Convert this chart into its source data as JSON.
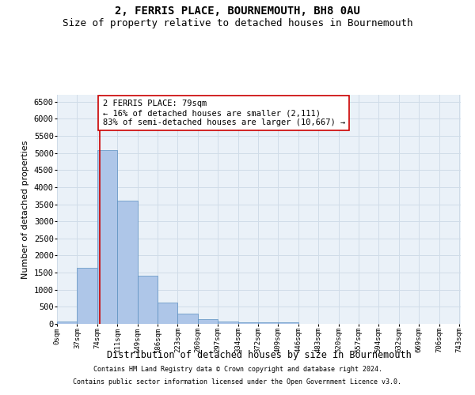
{
  "title": "2, FERRIS PLACE, BOURNEMOUTH, BH8 0AU",
  "subtitle": "Size of property relative to detached houses in Bournemouth",
  "xlabel": "Distribution of detached houses by size in Bournemouth",
  "ylabel": "Number of detached properties",
  "footer_line1": "Contains HM Land Registry data © Crown copyright and database right 2024.",
  "footer_line2": "Contains public sector information licensed under the Open Government Licence v3.0.",
  "bin_labels": [
    "0sqm",
    "37sqm",
    "74sqm",
    "111sqm",
    "149sqm",
    "186sqm",
    "223sqm",
    "260sqm",
    "297sqm",
    "334sqm",
    "372sqm",
    "409sqm",
    "446sqm",
    "483sqm",
    "520sqm",
    "557sqm",
    "594sqm",
    "632sqm",
    "669sqm",
    "706sqm",
    "743sqm"
  ],
  "bar_values": [
    75,
    1630,
    5080,
    3600,
    1400,
    620,
    300,
    140,
    80,
    50,
    40,
    50,
    0,
    0,
    0,
    0,
    0,
    0,
    0,
    0
  ],
  "bar_color": "#aec6e8",
  "bar_edge_color": "#5a8fc0",
  "grid_color": "#d0dce8",
  "property_line_x": 79,
  "property_line_color": "#cc0000",
  "annotation_text": "2 FERRIS PLACE: 79sqm\n← 16% of detached houses are smaller (2,111)\n83% of semi-detached houses are larger (10,667) →",
  "annotation_box_color": "#ffffff",
  "annotation_box_edge_color": "#cc0000",
  "ylim": [
    0,
    6700
  ],
  "yticks": [
    0,
    500,
    1000,
    1500,
    2000,
    2500,
    3000,
    3500,
    4000,
    4500,
    5000,
    5500,
    6000,
    6500
  ],
  "background_color": "#eaf1f8",
  "fig_bg_color": "#ffffff",
  "title_fontsize": 10,
  "subtitle_fontsize": 9,
  "annotation_fontsize": 7.5,
  "ylabel_fontsize": 8,
  "xlabel_fontsize": 8.5,
  "ytick_fontsize": 7.5,
  "xtick_fontsize": 6.5,
  "footer_fontsize": 6
}
